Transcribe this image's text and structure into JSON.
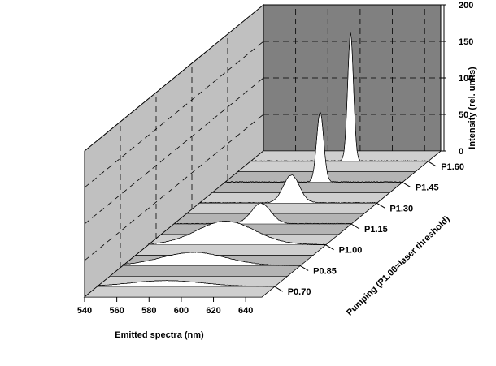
{
  "chart_data": {
    "type": "area",
    "xlabel": "Emitted spectra (nm)",
    "ylabel": "Pumping (P1.00=laser threshold)",
    "zlabel": "Intensity (rel. units)",
    "x_ticks": [
      "540",
      "560",
      "580",
      "600",
      "620",
      "640"
    ],
    "z_ticks": [
      "0",
      "50",
      "100",
      "150",
      "200"
    ],
    "xlim": [
      540,
      650
    ],
    "zlim": [
      0,
      200
    ],
    "grid": true,
    "colors": {
      "back_wall": "#808080",
      "side_wall": "#c0c0c0",
      "floor": "#c0c0c0",
      "series_fill": "#ffffff"
    },
    "series": [
      {
        "name": "P0.70",
        "peak_x": 583,
        "peak_height": 8,
        "width": 22,
        "noise": 0.8
      },
      {
        "name": "P0.85",
        "peak_x": 584,
        "peak_height": 18,
        "width": 20,
        "noise": 1.2
      },
      {
        "name": "P1.00",
        "peak_x": 588,
        "peak_height": 32,
        "width": 18,
        "noise": 1.4
      },
      {
        "name": "P1.15",
        "peak_x": 594,
        "peak_height": 28,
        "width": 6,
        "noise": 1.8
      },
      {
        "name": "P1.30",
        "peak_x": 597,
        "peak_height": 38,
        "width": 5,
        "noise": 2.0
      },
      {
        "name": "P1.45",
        "peak_x": 599,
        "peak_height": 95,
        "width": 2.2,
        "noise": 2.2
      },
      {
        "name": "P1.60",
        "peak_x": 602,
        "peak_height": 175,
        "width": 1.8,
        "noise": 2.4
      }
    ]
  }
}
